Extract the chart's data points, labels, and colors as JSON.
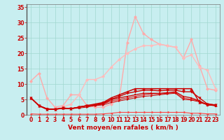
{
  "bg_color": "#c8eef0",
  "grid_color": "#a0d8d0",
  "xlabel": "Vent moyen/en rafales ( km/h )",
  "tick_color": "#cc0000",
  "yticks": [
    0,
    5,
    10,
    15,
    20,
    25,
    30,
    35
  ],
  "xticks": [
    0,
    1,
    2,
    3,
    4,
    5,
    6,
    7,
    8,
    9,
    10,
    11,
    12,
    13,
    14,
    15,
    16,
    17,
    18,
    19,
    20,
    21,
    22,
    23
  ],
  "xlim": [
    -0.5,
    23.5
  ],
  "ylim": [
    0,
    36
  ],
  "series": [
    {
      "x": [
        0,
        1,
        2,
        3,
        4,
        5,
        6,
        7,
        8,
        9,
        10,
        11,
        12,
        13,
        14,
        15,
        16,
        17,
        18,
        19,
        20,
        21,
        22,
        23
      ],
      "y": [
        11.0,
        13.5,
        5.5,
        2.5,
        3.0,
        6.5,
        6.5,
        3.0,
        2.5,
        2.5,
        3.5,
        5.0,
        23.5,
        32.0,
        26.5,
        24.5,
        23.0,
        22.5,
        22.0,
        18.5,
        24.5,
        16.0,
        8.5,
        8.0
      ],
      "color": "#ffaaaa",
      "marker": "D",
      "markersize": 2.5,
      "linewidth": 1.0,
      "zorder": 3
    },
    {
      "x": [
        0,
        1,
        2,
        3,
        4,
        5,
        6,
        7,
        8,
        9,
        10,
        11,
        12,
        13,
        14,
        15,
        16,
        17,
        18,
        19,
        20,
        21,
        22,
        23
      ],
      "y": [
        5.5,
        3.0,
        2.0,
        1.8,
        2.5,
        3.5,
        6.5,
        11.5,
        11.5,
        12.5,
        15.5,
        18.0,
        20.0,
        21.5,
        22.5,
        22.5,
        23.0,
        22.5,
        22.0,
        18.5,
        19.5,
        15.5,
        14.5,
        8.5
      ],
      "color": "#ffbbbb",
      "marker": "D",
      "markersize": 2.5,
      "linewidth": 1.0,
      "zorder": 3
    },
    {
      "x": [
        0,
        1,
        2,
        3,
        4,
        5,
        6,
        7,
        8,
        9,
        10,
        11,
        12,
        13,
        14,
        15,
        16,
        17,
        18,
        19,
        20,
        21,
        22,
        23
      ],
      "y": [
        5.5,
        3.0,
        1.8,
        1.8,
        2.2,
        2.0,
        2.5,
        3.0,
        3.5,
        4.0,
        5.5,
        6.5,
        7.5,
        8.5,
        8.5,
        8.5,
        8.5,
        8.5,
        8.5,
        8.5,
        8.5,
        4.0,
        3.5,
        3.2
      ],
      "color": "#cc0000",
      "marker": "^",
      "markersize": 3,
      "linewidth": 1.1,
      "zorder": 5
    },
    {
      "x": [
        0,
        1,
        2,
        3,
        4,
        5,
        6,
        7,
        8,
        9,
        10,
        11,
        12,
        13,
        14,
        15,
        16,
        17,
        18,
        19,
        20,
        21,
        22,
        23
      ],
      "y": [
        5.5,
        3.0,
        1.8,
        1.8,
        2.2,
        2.0,
        2.5,
        3.0,
        3.2,
        3.8,
        5.0,
        6.0,
        7.0,
        7.5,
        8.0,
        8.0,
        7.8,
        8.0,
        8.0,
        7.5,
        7.5,
        5.5,
        3.5,
        3.2
      ],
      "color": "#cc0000",
      "marker": "v",
      "markersize": 3,
      "linewidth": 1.0,
      "zorder": 4
    },
    {
      "x": [
        0,
        1,
        2,
        3,
        4,
        5,
        6,
        7,
        8,
        9,
        10,
        11,
        12,
        13,
        14,
        15,
        16,
        17,
        18,
        19,
        20,
        21,
        22,
        23
      ],
      "y": [
        5.5,
        3.0,
        1.8,
        1.8,
        2.2,
        2.0,
        2.5,
        3.0,
        3.2,
        3.5,
        5.0,
        5.5,
        6.0,
        6.5,
        7.0,
        7.0,
        7.0,
        7.2,
        7.5,
        6.0,
        5.5,
        4.5,
        3.2,
        3.0
      ],
      "color": "#cc0000",
      "marker": "s",
      "markersize": 2,
      "linewidth": 0.9,
      "zorder": 4
    },
    {
      "x": [
        0,
        1,
        2,
        3,
        4,
        5,
        6,
        7,
        8,
        9,
        10,
        11,
        12,
        13,
        14,
        15,
        16,
        17,
        18,
        19,
        20,
        21,
        22,
        23
      ],
      "y": [
        5.5,
        3.0,
        2.0,
        1.8,
        2.2,
        2.0,
        2.5,
        2.8,
        3.2,
        3.5,
        4.5,
        5.0,
        5.5,
        6.0,
        6.5,
        6.8,
        6.8,
        7.0,
        7.2,
        5.5,
        5.0,
        4.5,
        3.2,
        3.0
      ],
      "color": "#dd2222",
      "marker": "D",
      "markersize": 2,
      "linewidth": 0.8,
      "zorder": 3
    },
    {
      "x": [
        0,
        1,
        2,
        3,
        4,
        5,
        6,
        7,
        8,
        9,
        10,
        11,
        12,
        13,
        14,
        15,
        16,
        17,
        18,
        19,
        20,
        21,
        22,
        23
      ],
      "y": [
        5.5,
        3.0,
        2.0,
        1.8,
        2.0,
        2.0,
        2.2,
        2.5,
        3.0,
        3.2,
        4.0,
        4.5,
        5.0,
        5.5,
        6.0,
        6.2,
        6.5,
        6.8,
        7.0,
        5.0,
        4.8,
        4.2,
        3.2,
        3.0
      ],
      "color": "#cc0000",
      "marker": ">",
      "markersize": 2,
      "linewidth": 0.7,
      "zorder": 3
    },
    {
      "x": [
        0,
        1,
        2,
        3,
        4,
        5,
        6,
        7,
        8,
        9,
        10,
        11,
        12,
        13,
        14,
        15,
        16,
        17,
        18,
        19,
        20,
        21,
        22,
        23
      ],
      "y": [
        0.3,
        0.2,
        0.2,
        0.2,
        0.2,
        0.2,
        0.2,
        0.2,
        0.2,
        0.3,
        0.5,
        0.8,
        0.8,
        0.8,
        0.8,
        0.8,
        0.8,
        0.8,
        0.8,
        0.8,
        0.5,
        0.5,
        0.3,
        0.3
      ],
      "color": "#ff4444",
      "marker": "<",
      "markersize": 2.5,
      "linewidth": 0.8,
      "zorder": 2
    }
  ]
}
